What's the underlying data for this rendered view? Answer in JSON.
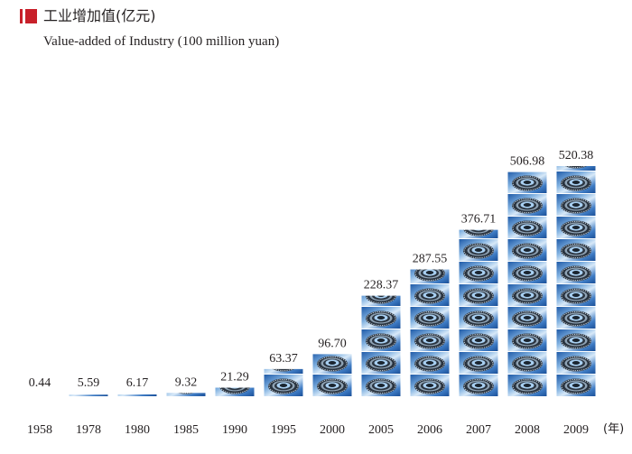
{
  "legend": {
    "title_cn": "工业增加值(亿元)",
    "title_en": "Value-added of Industry (100 million yuan)",
    "color": "#c8202a"
  },
  "chart_data": {
    "type": "bar",
    "title": "工业增加值(亿元) / Value-added of Industry (100 million yuan)",
    "xlabel": "(年)",
    "ylabel": "",
    "categories": [
      "1958",
      "1978",
      "1980",
      "1985",
      "1990",
      "1995",
      "2000",
      "2005",
      "2006",
      "2007",
      "2008",
      "2009"
    ],
    "values": [
      0.44,
      5.59,
      6.17,
      9.32,
      21.29,
      63.37,
      96.7,
      228.37,
      287.55,
      376.71,
      506.98,
      520.38
    ],
    "value_labels": [
      "0.44",
      "5.59",
      "6.17",
      "9.32",
      "21.29",
      "63.37",
      "96.70",
      "228.37",
      "287.55",
      "376.71",
      "506.98",
      "520.38"
    ],
    "ylim": [
      0,
      520.38
    ],
    "grid": false,
    "axes_visible": false,
    "bar_style": "pictorial stacked gear image tiles",
    "colors": {
      "tile_dark": "#1e5aa8",
      "tile_light": "#cfe3f5",
      "gear": "#2a3440"
    }
  }
}
